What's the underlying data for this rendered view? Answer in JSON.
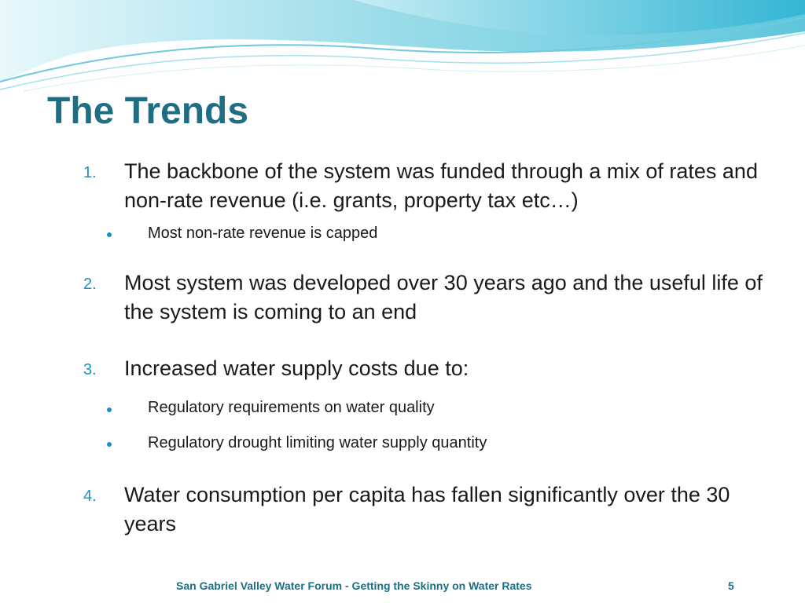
{
  "slide": {
    "title": "The Trends",
    "items": [
      {
        "number": "1.",
        "text": "The backbone of the system was funded through a mix of rates and non-rate revenue (i.e. grants, property tax etc…)",
        "subitems": [
          "Most non-rate revenue is capped"
        ]
      },
      {
        "number": "2.",
        "text": "Most system was developed over 30 years ago and the useful life of the system is coming to an end",
        "subitems": []
      },
      {
        "number": "3.",
        "text": "Increased water supply costs due to:",
        "subitems": [
          "Regulatory requirements on water quality",
          "Regulatory drought limiting water supply quantity"
        ]
      },
      {
        "number": "4.",
        "text": "Water consumption per capita has fallen significantly over the 30 years",
        "subitems": []
      }
    ],
    "footer": "San Gabriel Valley Water Forum - Getting the Skinny on Water Rates",
    "page_number": "5"
  },
  "colors": {
    "title": "#1f6e84",
    "accent": "#1a8fc4",
    "wave": "#7fd3e3",
    "text": "#1a1a1a"
  }
}
